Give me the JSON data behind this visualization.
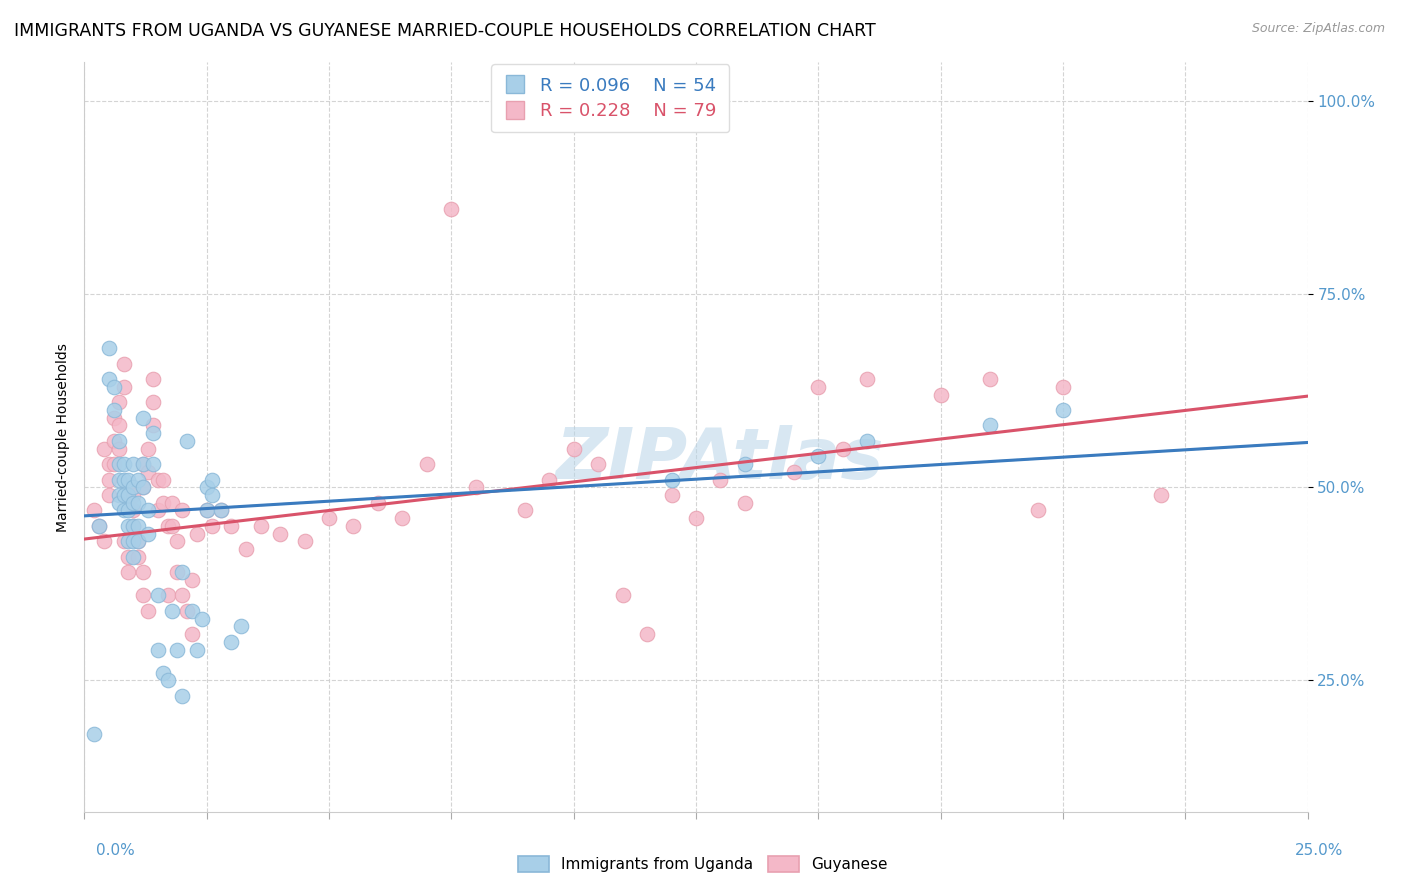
{
  "title": "IMMIGRANTS FROM UGANDA VS GUYANESE MARRIED-COUPLE HOUSEHOLDS CORRELATION CHART",
  "source": "Source: ZipAtlas.com",
  "ylabel": "Married-couple Households",
  "ytick_labels": [
    "25.0%",
    "50.0%",
    "75.0%",
    "100.0%"
  ],
  "ytick_values": [
    0.25,
    0.5,
    0.75,
    1.0
  ],
  "xlim": [
    0.0,
    0.25
  ],
  "ylim": [
    0.08,
    1.05
  ],
  "color_blue": "#a8cfe8",
  "color_pink": "#f4b8c8",
  "color_blue_line": "#3a7bbf",
  "color_pink_line": "#d9536a",
  "watermark_color": "#b8d4e8",
  "watermark": "ZIPAtlas",
  "blue_points": [
    [
      0.002,
      0.18
    ],
    [
      0.003,
      0.45
    ],
    [
      0.005,
      0.68
    ],
    [
      0.005,
      0.64
    ],
    [
      0.006,
      0.63
    ],
    [
      0.006,
      0.6
    ],
    [
      0.007,
      0.56
    ],
    [
      0.007,
      0.53
    ],
    [
      0.007,
      0.51
    ],
    [
      0.007,
      0.49
    ],
    [
      0.007,
      0.48
    ],
    [
      0.008,
      0.53
    ],
    [
      0.008,
      0.51
    ],
    [
      0.008,
      0.49
    ],
    [
      0.008,
      0.47
    ],
    [
      0.009,
      0.51
    ],
    [
      0.009,
      0.49
    ],
    [
      0.009,
      0.47
    ],
    [
      0.009,
      0.45
    ],
    [
      0.009,
      0.43
    ],
    [
      0.01,
      0.53
    ],
    [
      0.01,
      0.5
    ],
    [
      0.01,
      0.48
    ],
    [
      0.01,
      0.45
    ],
    [
      0.01,
      0.43
    ],
    [
      0.01,
      0.41
    ],
    [
      0.011,
      0.51
    ],
    [
      0.011,
      0.48
    ],
    [
      0.011,
      0.45
    ],
    [
      0.011,
      0.43
    ],
    [
      0.012,
      0.59
    ],
    [
      0.012,
      0.53
    ],
    [
      0.012,
      0.5
    ],
    [
      0.013,
      0.47
    ],
    [
      0.013,
      0.44
    ],
    [
      0.014,
      0.57
    ],
    [
      0.014,
      0.53
    ],
    [
      0.015,
      0.36
    ],
    [
      0.015,
      0.29
    ],
    [
      0.016,
      0.26
    ],
    [
      0.017,
      0.25
    ],
    [
      0.018,
      0.34
    ],
    [
      0.019,
      0.29
    ],
    [
      0.02,
      0.39
    ],
    [
      0.02,
      0.23
    ],
    [
      0.021,
      0.56
    ],
    [
      0.022,
      0.34
    ],
    [
      0.023,
      0.29
    ],
    [
      0.024,
      0.33
    ],
    [
      0.025,
      0.5
    ],
    [
      0.025,
      0.47
    ],
    [
      0.026,
      0.51
    ],
    [
      0.026,
      0.49
    ],
    [
      0.028,
      0.47
    ],
    [
      0.03,
      0.3
    ],
    [
      0.032,
      0.32
    ],
    [
      0.12,
      0.51
    ],
    [
      0.135,
      0.53
    ],
    [
      0.15,
      0.54
    ],
    [
      0.16,
      0.56
    ],
    [
      0.185,
      0.58
    ],
    [
      0.2,
      0.6
    ]
  ],
  "pink_points": [
    [
      0.002,
      0.47
    ],
    [
      0.003,
      0.45
    ],
    [
      0.004,
      0.43
    ],
    [
      0.004,
      0.55
    ],
    [
      0.005,
      0.53
    ],
    [
      0.005,
      0.51
    ],
    [
      0.005,
      0.49
    ],
    [
      0.006,
      0.59
    ],
    [
      0.006,
      0.56
    ],
    [
      0.006,
      0.53
    ],
    [
      0.007,
      0.61
    ],
    [
      0.007,
      0.58
    ],
    [
      0.007,
      0.55
    ],
    [
      0.008,
      0.66
    ],
    [
      0.008,
      0.63
    ],
    [
      0.008,
      0.43
    ],
    [
      0.009,
      0.41
    ],
    [
      0.009,
      0.39
    ],
    [
      0.01,
      0.49
    ],
    [
      0.01,
      0.47
    ],
    [
      0.01,
      0.45
    ],
    [
      0.011,
      0.43
    ],
    [
      0.011,
      0.41
    ],
    [
      0.012,
      0.53
    ],
    [
      0.012,
      0.5
    ],
    [
      0.012,
      0.39
    ],
    [
      0.012,
      0.36
    ],
    [
      0.013,
      0.55
    ],
    [
      0.013,
      0.52
    ],
    [
      0.013,
      0.34
    ],
    [
      0.014,
      0.64
    ],
    [
      0.014,
      0.61
    ],
    [
      0.014,
      0.58
    ],
    [
      0.015,
      0.51
    ],
    [
      0.015,
      0.47
    ],
    [
      0.016,
      0.51
    ],
    [
      0.016,
      0.48
    ],
    [
      0.017,
      0.45
    ],
    [
      0.017,
      0.36
    ],
    [
      0.018,
      0.48
    ],
    [
      0.018,
      0.45
    ],
    [
      0.019,
      0.43
    ],
    [
      0.019,
      0.39
    ],
    [
      0.02,
      0.47
    ],
    [
      0.02,
      0.36
    ],
    [
      0.021,
      0.34
    ],
    [
      0.022,
      0.38
    ],
    [
      0.022,
      0.31
    ],
    [
      0.023,
      0.44
    ],
    [
      0.025,
      0.47
    ],
    [
      0.026,
      0.45
    ],
    [
      0.028,
      0.47
    ],
    [
      0.03,
      0.45
    ],
    [
      0.033,
      0.42
    ],
    [
      0.036,
      0.45
    ],
    [
      0.04,
      0.44
    ],
    [
      0.045,
      0.43
    ],
    [
      0.05,
      0.46
    ],
    [
      0.055,
      0.45
    ],
    [
      0.06,
      0.48
    ],
    [
      0.065,
      0.46
    ],
    [
      0.07,
      0.53
    ],
    [
      0.075,
      0.86
    ],
    [
      0.08,
      0.5
    ],
    [
      0.09,
      0.47
    ],
    [
      0.095,
      0.51
    ],
    [
      0.1,
      0.55
    ],
    [
      0.105,
      0.53
    ],
    [
      0.11,
      0.36
    ],
    [
      0.115,
      0.31
    ],
    [
      0.12,
      0.49
    ],
    [
      0.125,
      0.46
    ],
    [
      0.13,
      0.51
    ],
    [
      0.135,
      0.48
    ],
    [
      0.145,
      0.52
    ],
    [
      0.15,
      0.63
    ],
    [
      0.155,
      0.55
    ],
    [
      0.16,
      0.64
    ],
    [
      0.175,
      0.62
    ],
    [
      0.185,
      0.64
    ],
    [
      0.195,
      0.47
    ],
    [
      0.2,
      0.63
    ],
    [
      0.22,
      0.49
    ]
  ],
  "blue_line": {
    "x0": 0.0,
    "y0": 0.463,
    "x1": 0.25,
    "y1": 0.558
  },
  "pink_line": {
    "x0": 0.0,
    "y0": 0.433,
    "x1": 0.25,
    "y1": 0.618
  },
  "background_color": "#ffffff",
  "grid_color": "#d0d0d0",
  "title_fontsize": 12.5,
  "axis_label_fontsize": 10,
  "tick_fontsize": 11,
  "legend_fontsize": 13
}
